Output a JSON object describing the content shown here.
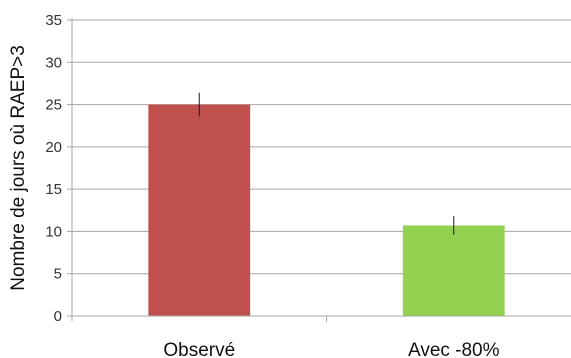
{
  "chart_data": {
    "type": "bar",
    "title": "",
    "xlabel": "",
    "ylabel": "Nombre de jours où RAEP>3",
    "categories": [
      "Observé",
      "Avec -80%"
    ],
    "values": [
      25,
      10.7
    ],
    "error": [
      [
        23.6,
        26.4
      ],
      [
        9.6,
        11.8
      ]
    ],
    "colors": [
      "#C0504D",
      "#92D050"
    ],
    "ylim": [
      0,
      35
    ],
    "yticks": [
      0,
      5,
      10,
      15,
      20,
      25,
      30,
      35
    ],
    "grid": true,
    "legend": "none"
  }
}
